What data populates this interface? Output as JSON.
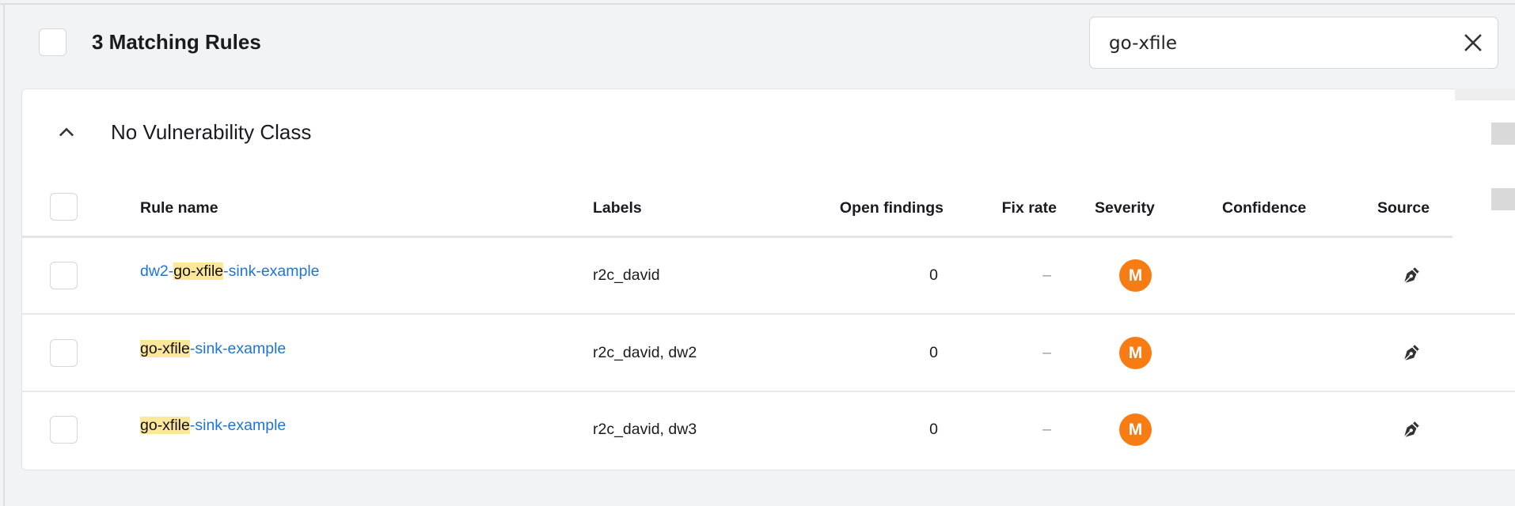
{
  "header": {
    "title": "3 Matching Rules"
  },
  "search": {
    "value": "go-xfile",
    "clear_icon": "close-icon"
  },
  "group": {
    "title": "No Vulnerability Class",
    "toggle_icon": "chevron-up-icon"
  },
  "table": {
    "columns": [
      "Rule name",
      "Labels",
      "Open findings",
      "Fix rate",
      "Severity",
      "Confidence",
      "Source"
    ],
    "rows": [
      {
        "name_prefix": "dw2-",
        "name_match": "go-xfile",
        "name_suffix": "-sink-example",
        "labels": "r2c_david",
        "open_findings": "0",
        "fix_rate": "–",
        "severity": "M",
        "confidence": "",
        "source_icon": "pen-nib-icon"
      },
      {
        "name_prefix": "",
        "name_match": "go-xfile",
        "name_suffix": "-sink-example",
        "labels": "r2c_david, dw2",
        "open_findings": "0",
        "fix_rate": "–",
        "severity": "M",
        "confidence": "",
        "source_icon": "pen-nib-icon"
      },
      {
        "name_prefix": "",
        "name_match": "go-xfile",
        "name_suffix": "-sink-example",
        "labels": "r2c_david, dw3",
        "open_findings": "0",
        "fix_rate": "–",
        "severity": "M",
        "confidence": "",
        "source_icon": "pen-nib-icon"
      }
    ]
  },
  "colors": {
    "link": "#1f74d4",
    "highlight": "#fde79a",
    "severity_medium": "#f87c14"
  }
}
